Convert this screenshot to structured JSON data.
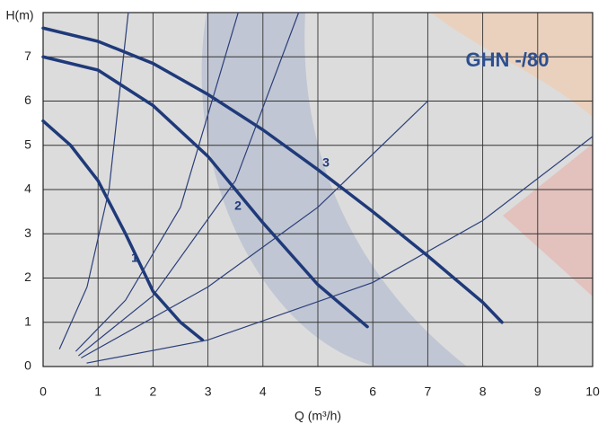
{
  "chart_data": {
    "type": "line",
    "annotation": "GHN -/80",
    "y_label": "H(m)",
    "x_label": "Q (m³/h)",
    "xlim": [
      0,
      10
    ],
    "ylim": [
      0,
      8
    ],
    "xticks": [
      0,
      1,
      2,
      3,
      4,
      5,
      6,
      7,
      8,
      9,
      10
    ],
    "yticks": [
      0,
      1,
      2,
      3,
      4,
      5,
      6,
      7
    ],
    "grid": true,
    "series": [
      {
        "name": "1",
        "color": "#1f3a7a",
        "x": [
          0,
          0.5,
          1,
          1.5,
          2,
          2.5,
          2.9
        ],
        "values": [
          5.55,
          5.0,
          4.2,
          3.0,
          1.7,
          1.0,
          0.6
        ]
      },
      {
        "name": "2",
        "color": "#1f3a7a",
        "x": [
          0,
          1,
          2,
          3,
          4,
          5,
          5.9
        ],
        "values": [
          7.0,
          6.7,
          5.9,
          4.75,
          3.25,
          1.85,
          0.9
        ]
      },
      {
        "name": "3",
        "color": "#1f3a7a",
        "x": [
          0,
          1,
          2,
          3,
          4,
          5,
          6,
          7,
          8,
          8.35
        ],
        "values": [
          7.65,
          7.35,
          6.85,
          6.15,
          5.35,
          4.45,
          3.5,
          2.5,
          1.45,
          1.0
        ]
      },
      {
        "color": "#2b3f7a",
        "x": [
          0.3,
          0.8,
          1.2,
          1.55
        ],
        "values": [
          0.4,
          1.8,
          4.0,
          8.0
        ]
      },
      {
        "color": "#2b3f7a",
        "x": [
          0.6,
          1.5,
          2.5,
          3.55
        ],
        "values": [
          0.35,
          1.5,
          3.6,
          8.0
        ]
      },
      {
        "color": "#2b3f7a",
        "x": [
          0.65,
          2,
          3.5,
          4.65
        ],
        "values": [
          0.25,
          1.6,
          4.2,
          8.0
        ]
      },
      {
        "color": "#2b3f7a",
        "x": [
          0.7,
          3,
          5,
          7
        ],
        "values": [
          0.2,
          1.8,
          3.6,
          6.0
        ]
      },
      {
        "color": "#2b3f7a",
        "x": [
          0.8,
          3,
          6,
          8,
          10
        ],
        "values": [
          0.08,
          0.6,
          1.9,
          3.3,
          5.2
        ]
      }
    ]
  }
}
